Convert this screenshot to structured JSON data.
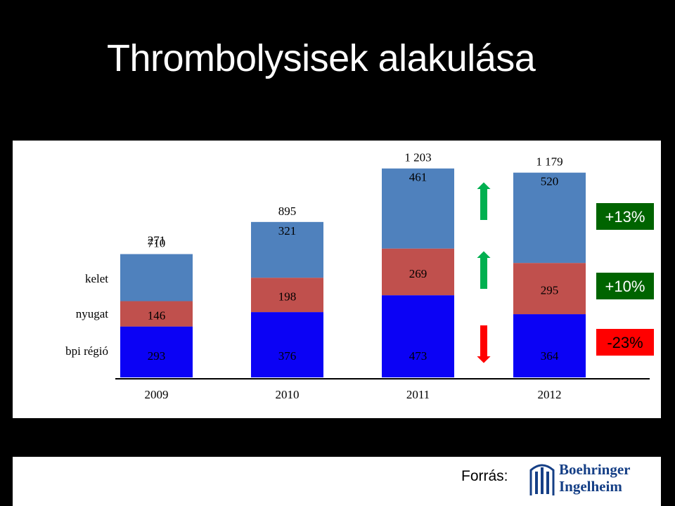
{
  "title": "Thrombolysisek alakulása",
  "source_label": "Forrás:",
  "logo": {
    "line1": "Boehringer",
    "line2": "Ingelheim"
  },
  "colors": {
    "bpi": "#0b02f5",
    "nyugat": "#c0504d",
    "kelet": "#4f81bd",
    "up": "#00b050",
    "down": "#ff0000",
    "badge_green": "#006400",
    "badge_red": "#ff0000"
  },
  "chart_data": {
    "type": "bar",
    "stacked": true,
    "categories": [
      "2009",
      "2010",
      "2011",
      "2012"
    ],
    "series": [
      {
        "name": "bpi régió",
        "values": [
          293,
          376,
          473,
          364
        ]
      },
      {
        "name": "nyugat",
        "values": [
          146,
          198,
          269,
          295
        ]
      },
      {
        "name": "kelet",
        "values": [
          271,
          321,
          461,
          520
        ]
      }
    ],
    "totals": [
      "710",
      "895",
      "1 203",
      "1 179"
    ],
    "changes": [
      {
        "series": "kelet",
        "label": "+13%",
        "direction": "up"
      },
      {
        "series": "nyugat",
        "label": "+10%",
        "direction": "up"
      },
      {
        "series": "bpi régió",
        "label": "-23%",
        "direction": "down"
      }
    ],
    "ylim": [
      0,
      1210
    ],
    "grid": false
  }
}
